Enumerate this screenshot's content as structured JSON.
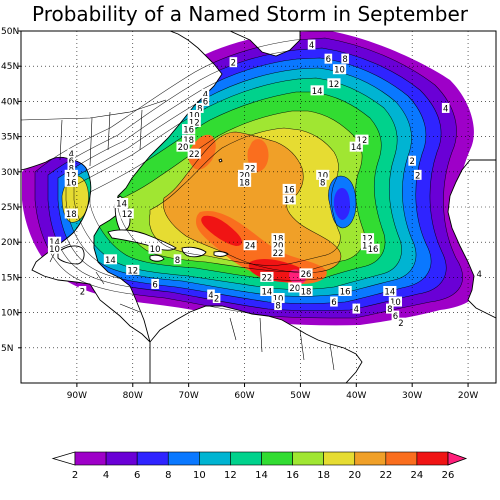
{
  "title": "Probability of a Named Storm in September",
  "map": {
    "lon_range": [
      -100,
      -15
    ],
    "lat_range": [
      0,
      50
    ],
    "lon_tick_labels": [
      {
        "lon": -90,
        "label": "90W"
      },
      {
        "lon": -80,
        "label": "80W"
      },
      {
        "lon": -70,
        "label": "70W"
      },
      {
        "lon": -60,
        "label": "60W"
      },
      {
        "lon": -50,
        "label": "50W"
      },
      {
        "lon": -40,
        "label": "40W"
      },
      {
        "lon": -30,
        "label": "30W"
      },
      {
        "lon": -20,
        "label": "20W"
      }
    ],
    "lat_tick_labels": [
      {
        "lat": 50,
        "label": "50N"
      },
      {
        "lat": 45,
        "label": "45N"
      },
      {
        "lat": 40,
        "label": "40N"
      },
      {
        "lat": 35,
        "label": "35N"
      },
      {
        "lat": 30,
        "label": "30N"
      },
      {
        "lat": 25,
        "label": "25N"
      },
      {
        "lat": 20,
        "label": "20N"
      },
      {
        "lat": 15,
        "label": "15N"
      },
      {
        "lat": 10,
        "label": "10N"
      },
      {
        "lat": 5,
        "label": "5N"
      }
    ],
    "gridlines": true
  },
  "colorbar": {
    "levels": [
      "2",
      "4",
      "6",
      "8",
      "10",
      "12",
      "14",
      "16",
      "18",
      "20",
      "22",
      "24",
      "26"
    ],
    "colors": [
      "#9e00c8",
      "#6a00d6",
      "#2f24ff",
      "#0a78ff",
      "#00b4d2",
      "#00d28c",
      "#32dc32",
      "#a0e632",
      "#e6dc32",
      "#f0a028",
      "#fa6e1e",
      "#f01414",
      "#ff1f7a"
    ],
    "low_end_color": "#ffffff"
  },
  "chart_data": {
    "type": "heatmap",
    "title": "Probability of a Named Storm in September",
    "units": "",
    "contour_levels": [
      2,
      4,
      6,
      8,
      10,
      12,
      14,
      16,
      18,
      20,
      22,
      24,
      26
    ],
    "peaks": [
      {
        "lon": -51,
        "lat": 16.5,
        "value": 26
      },
      {
        "lon": -61,
        "lat": 21.5,
        "value": 25
      },
      {
        "lon": -70,
        "lat": 34,
        "value": 22
      },
      {
        "lon": -58,
        "lat": 33,
        "value": 22
      },
      {
        "lon": -67,
        "lat": 29,
        "value": 22
      },
      {
        "lon": -46,
        "lat": 29,
        "value": 10
      },
      {
        "lon": -43,
        "lat": 25,
        "value": 8
      },
      {
        "lon": -92,
        "lat": 26,
        "value": 18
      }
    ],
    "contour_labels": [
      {
        "lon": -48,
        "lat": 48,
        "text": "4"
      },
      {
        "lon": -45,
        "lat": 46,
        "text": "6"
      },
      {
        "lon": -42,
        "lat": 46,
        "text": "8"
      },
      {
        "lon": -43,
        "lat": 44.5,
        "text": "10"
      },
      {
        "lon": -44,
        "lat": 42.5,
        "text": "12"
      },
      {
        "lon": -47,
        "lat": 41.5,
        "text": "14"
      },
      {
        "lon": -62,
        "lat": 45.5,
        "text": "2"
      },
      {
        "lon": -24,
        "lat": 39,
        "text": "4"
      },
      {
        "lon": -67,
        "lat": 41,
        "text": "4"
      },
      {
        "lon": -67,
        "lat": 40,
        "text": "6"
      },
      {
        "lon": -68,
        "lat": 39,
        "text": "8"
      },
      {
        "lon": -69,
        "lat": 38,
        "text": "10"
      },
      {
        "lon": -69,
        "lat": 37,
        "text": "12"
      },
      {
        "lon": -70,
        "lat": 36,
        "text": "16"
      },
      {
        "lon": -70,
        "lat": 34.5,
        "text": "18"
      },
      {
        "lon": -71,
        "lat": 33.5,
        "text": "20"
      },
      {
        "lon": -69,
        "lat": 32.5,
        "text": "22"
      },
      {
        "lon": -39,
        "lat": 34.5,
        "text": "12"
      },
      {
        "lon": -40,
        "lat": 33.5,
        "text": "14"
      },
      {
        "lon": -30,
        "lat": 31.5,
        "text": "2"
      },
      {
        "lon": -29,
        "lat": 29.5,
        "text": "2"
      },
      {
        "lon": -91,
        "lat": 32.5,
        "text": "4"
      },
      {
        "lon": -91,
        "lat": 31.5,
        "text": "6"
      },
      {
        "lon": -91,
        "lat": 30.5,
        "text": "8"
      },
      {
        "lon": -91,
        "lat": 29.5,
        "text": "12"
      },
      {
        "lon": -91,
        "lat": 28.5,
        "text": "16"
      },
      {
        "lon": -91,
        "lat": 24,
        "text": "18"
      },
      {
        "lon": -59,
        "lat": 30.5,
        "text": "22"
      },
      {
        "lon": -60,
        "lat": 29.5,
        "text": "20"
      },
      {
        "lon": -60,
        "lat": 28.5,
        "text": "18"
      },
      {
        "lon": -52,
        "lat": 27.5,
        "text": "16"
      },
      {
        "lon": -52,
        "lat": 26,
        "text": "14"
      },
      {
        "lon": -46,
        "lat": 29.5,
        "text": "10"
      },
      {
        "lon": -46,
        "lat": 28.5,
        "text": "8"
      },
      {
        "lon": -82,
        "lat": 25.5,
        "text": "14"
      },
      {
        "lon": -81,
        "lat": 24,
        "text": "12"
      },
      {
        "lon": -94,
        "lat": 20,
        "text": "14"
      },
      {
        "lon": -94,
        "lat": 19,
        "text": "10"
      },
      {
        "lon": -76,
        "lat": 19,
        "text": "10"
      },
      {
        "lon": -72,
        "lat": 17.5,
        "text": "8"
      },
      {
        "lon": -84,
        "lat": 17.5,
        "text": "14"
      },
      {
        "lon": -80,
        "lat": 16,
        "text": "12"
      },
      {
        "lon": -59,
        "lat": 19.5,
        "text": "24"
      },
      {
        "lon": -54,
        "lat": 20.5,
        "text": "18"
      },
      {
        "lon": -54,
        "lat": 19.5,
        "text": "20"
      },
      {
        "lon": -54,
        "lat": 18.5,
        "text": "22"
      },
      {
        "lon": -38,
        "lat": 20.5,
        "text": "12"
      },
      {
        "lon": -38,
        "lat": 19.5,
        "text": "14"
      },
      {
        "lon": -37,
        "lat": 19,
        "text": "16"
      },
      {
        "lon": -56,
        "lat": 15,
        "text": "22"
      },
      {
        "lon": -49,
        "lat": 15.5,
        "text": "26"
      },
      {
        "lon": -51,
        "lat": 13.5,
        "text": "20"
      },
      {
        "lon": -49,
        "lat": 13,
        "text": "18"
      },
      {
        "lon": -42,
        "lat": 13,
        "text": "16"
      },
      {
        "lon": -34,
        "lat": 13,
        "text": "14"
      },
      {
        "lon": -33,
        "lat": 11.5,
        "text": "10"
      },
      {
        "lon": -34,
        "lat": 10.5,
        "text": "8"
      },
      {
        "lon": -33,
        "lat": 9.5,
        "text": "6"
      },
      {
        "lon": -32,
        "lat": 8.5,
        "text": "2"
      },
      {
        "lon": -18,
        "lat": 15.5,
        "text": "4"
      },
      {
        "lon": -40,
        "lat": 10.5,
        "text": "4"
      },
      {
        "lon": -44,
        "lat": 11.5,
        "text": "6"
      },
      {
        "lon": -54,
        "lat": 12,
        "text": "10"
      },
      {
        "lon": -54,
        "lat": 11,
        "text": "8"
      },
      {
        "lon": -56,
        "lat": 13,
        "text": "14"
      },
      {
        "lon": -66,
        "lat": 12.5,
        "text": "4"
      },
      {
        "lon": -65,
        "lat": 12,
        "text": "2"
      },
      {
        "lon": -76,
        "lat": 14,
        "text": "6"
      },
      {
        "lon": -89,
        "lat": 13,
        "text": "2"
      }
    ]
  }
}
